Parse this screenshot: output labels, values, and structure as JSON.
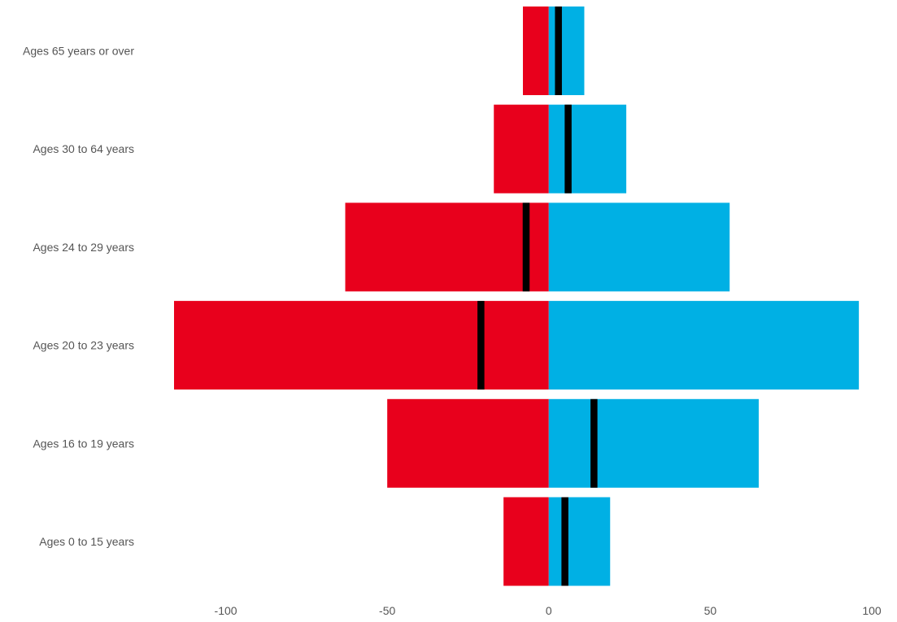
{
  "chart_data": {
    "type": "bar",
    "orientation": "horizontal",
    "layout": "diverging",
    "categories": [
      "Ages 0 to 15 years",
      "Ages 16 to 19 years",
      "Ages 20 to 23 years",
      "Ages 24 to 29 years",
      "Ages 30 to 64 years",
      "Ages 65 years or over"
    ],
    "series": [
      {
        "color": "#e8001c",
        "values": [
          -14,
          -50,
          -116,
          -63,
          -17,
          -8
        ]
      },
      {
        "color": "#00b0e4",
        "values": [
          19,
          65,
          96,
          56,
          24,
          11
        ]
      }
    ],
    "markers": {
      "color": "#000000",
      "values": [
        5,
        14,
        -21,
        -7,
        6,
        3
      ]
    },
    "xticks": [
      -100,
      -50,
      0,
      50,
      100
    ],
    "xtick_labels": [
      "-100",
      "-50",
      "0",
      "50",
      "100"
    ],
    "xlim": [
      -116,
      100
    ],
    "grid": false,
    "legend": "none"
  }
}
